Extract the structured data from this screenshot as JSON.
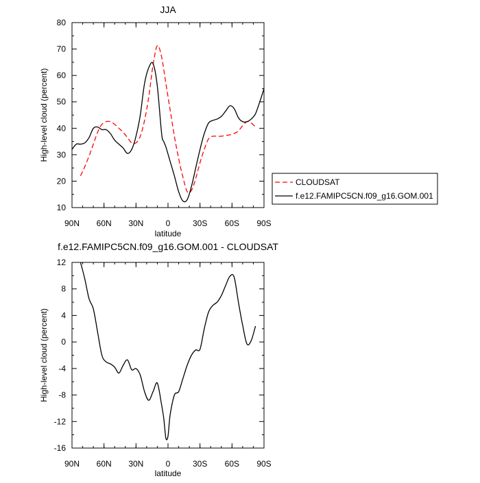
{
  "chart_data": [
    {
      "type": "line",
      "title": "JJA",
      "xlabel": "latitude",
      "ylabel": "High-level cloud (percent)",
      "xlim": [
        90,
        -90
      ],
      "ylim": [
        10,
        80
      ],
      "xticks": [
        90,
        60,
        30,
        0,
        -30,
        -60,
        -90
      ],
      "xtick_labels": [
        "90N",
        "60N",
        "30N",
        "0",
        "30S",
        "60S",
        "90S"
      ],
      "yticks": [
        10,
        20,
        30,
        40,
        50,
        60,
        70,
        80
      ],
      "ytick_labels": [
        "10",
        "20",
        "30",
        "40",
        "50",
        "60",
        "70",
        "80"
      ],
      "legend_position": "right",
      "series": [
        {
          "name": "CLOUDSAT",
          "color": "#ff0000",
          "dash": "dashed",
          "x": [
            82,
            78,
            74,
            70,
            66,
            62,
            58,
            54,
            50,
            46,
            42,
            38,
            34,
            30,
            26,
            22,
            18,
            14,
            10,
            6,
            2,
            -2,
            -6,
            -10,
            -14,
            -18,
            -22,
            -26,
            -30,
            -34,
            -38,
            -42,
            -46,
            -50,
            -54,
            -58,
            -62,
            -66,
            -70,
            -74,
            -78,
            -82
          ],
          "y": [
            22,
            25.5,
            29.5,
            34,
            38.5,
            41.5,
            42.5,
            42.5,
            41.5,
            40,
            38.5,
            36.5,
            34.5,
            34.5,
            37,
            43,
            52,
            64,
            71.3,
            67,
            57,
            47,
            37,
            28.5,
            21.5,
            16,
            16.5,
            21,
            27,
            32,
            36,
            37,
            37,
            37,
            37.3,
            37.5,
            38,
            39,
            41,
            42.5,
            42,
            40.5
          ]
        },
        {
          "name": "f.e12.FAMIPC5CN.f09_g16.GOM.001",
          "color": "#000000",
          "dash": "solid",
          "x": [
            90,
            86,
            82,
            78,
            74,
            70,
            66,
            62,
            58,
            54,
            50,
            46,
            42,
            38,
            34,
            30,
            26,
            22,
            18,
            14,
            10,
            6,
            4,
            2,
            -2,
            -6,
            -10,
            -14,
            -18,
            -22,
            -26,
            -30,
            -34,
            -38,
            -42,
            -46,
            -50,
            -54,
            -58,
            -62,
            -66,
            -70,
            -74,
            -78,
            -82,
            -86,
            -90
          ],
          "y": [
            32,
            34,
            34,
            34.5,
            36.5,
            40,
            40.5,
            39.5,
            39.5,
            38,
            35.5,
            34,
            32.5,
            30.5,
            32,
            37,
            45,
            57,
            63,
            64.5,
            56,
            38,
            35,
            33,
            27.5,
            22,
            16,
            12.5,
            13,
            18,
            25,
            32,
            38,
            42,
            43,
            43.5,
            44.5,
            46.5,
            48.5,
            47.5,
            44,
            42.5,
            42.5,
            43.5,
            45.5,
            50,
            55
          ]
        }
      ]
    },
    {
      "type": "line",
      "title": "f.e12.FAMIPC5CN.f09_g16.GOM.001 - CLOUDSAT",
      "xlabel": "latitude",
      "ylabel": "High-level cloud (percent)",
      "xlim": [
        90,
        -90
      ],
      "ylim": [
        -16,
        12
      ],
      "xticks": [
        90,
        60,
        30,
        0,
        -30,
        -60,
        -90
      ],
      "xtick_labels": [
        "90N",
        "60N",
        "30N",
        "0",
        "30S",
        "60S",
        "90S"
      ],
      "yticks": [
        -16,
        -12,
        -8,
        -4,
        0,
        4,
        8,
        12
      ],
      "ytick_labels": [
        "-16",
        "-12",
        "-8",
        "-4",
        "0",
        "4",
        "8",
        "12"
      ],
      "series": [
        {
          "color": "#000000",
          "dash": "solid",
          "x": [
            82,
            78,
            74,
            70,
            66,
            62,
            58,
            54,
            50,
            46,
            42,
            38,
            34,
            30,
            26,
            22,
            18,
            14,
            10,
            6,
            4,
            2,
            0,
            -2,
            -6,
            -10,
            -14,
            -18,
            -22,
            -26,
            -30,
            -34,
            -38,
            -42,
            -46,
            -50,
            -54,
            -58,
            -62,
            -66,
            -70,
            -74,
            -78,
            -82
          ],
          "y": [
            12,
            9.5,
            6.5,
            5,
            1.5,
            -2,
            -3,
            -3.3,
            -3.8,
            -4.7,
            -3.5,
            -2.7,
            -4.2,
            -4,
            -5,
            -7.5,
            -8.8,
            -7.5,
            -6.2,
            -9.5,
            -11.5,
            -14.5,
            -14.2,
            -11,
            -8,
            -7.5,
            -5.5,
            -3.5,
            -2,
            -1.2,
            -1.1,
            2,
            4.5,
            5.5,
            6,
            7,
            8.5,
            9.9,
            9.8,
            6,
            2.5,
            -0.3,
            0.2,
            2.4
          ]
        }
      ]
    }
  ]
}
